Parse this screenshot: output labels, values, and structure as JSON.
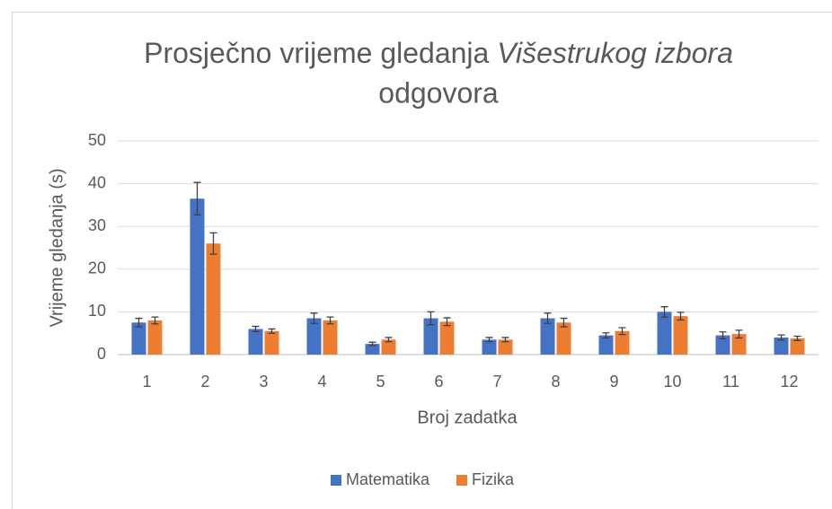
{
  "chart_data": {
    "type": "bar",
    "title": [
      "Prosječno vrijeme gledanja",
      "Višestrukog izbora",
      "odgovora"
    ],
    "x_label": "Broj zadatka",
    "y_label": "Vrijeme gledanja (s)",
    "categories": [
      "1",
      "2",
      "3",
      "4",
      "5",
      "6",
      "7",
      "8",
      "9",
      "10",
      "11",
      "12"
    ],
    "series": [
      {
        "name": "Matematika",
        "color": "#4472c4",
        "values": [
          7.5,
          36.5,
          6,
          8.5,
          2.5,
          8.5,
          3.5,
          8.5,
          4.5,
          10,
          4.5,
          4
        ],
        "errors": [
          1,
          3.8,
          0.6,
          1.2,
          0.4,
          1.5,
          0.5,
          1.2,
          0.6,
          1.2,
          0.8,
          0.6
        ]
      },
      {
        "name": "Fizika",
        "color": "#ed7d31",
        "values": [
          8,
          26,
          5.5,
          8,
          3.5,
          7.7,
          3.5,
          7.5,
          5.5,
          9,
          4.8,
          3.8
        ],
        "errors": [
          0.8,
          2.5,
          0.5,
          0.8,
          0.5,
          0.9,
          0.5,
          1,
          0.8,
          0.9,
          0.9,
          0.5
        ]
      }
    ],
    "ylim": [
      0,
      50
    ],
    "yticks": [
      0,
      10,
      20,
      30,
      40,
      50
    ],
    "grid": true,
    "legend": "bottom"
  }
}
